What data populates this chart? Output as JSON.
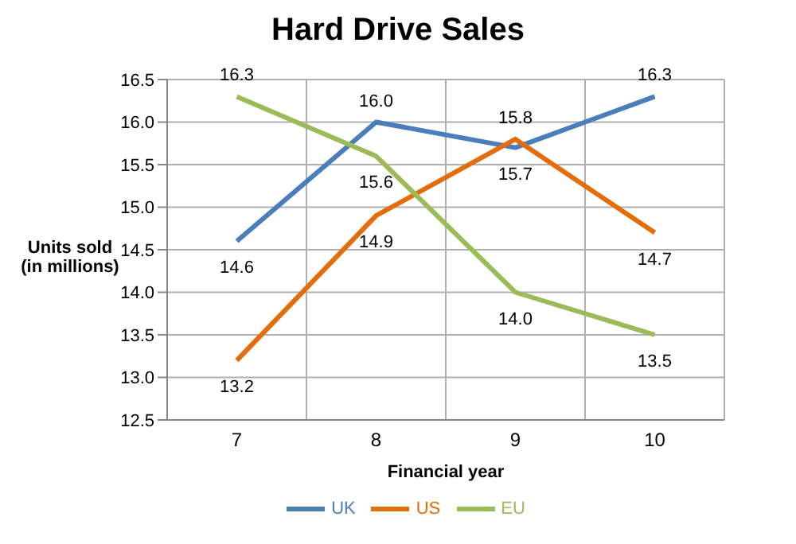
{
  "chart_data": {
    "type": "line",
    "title": "Hard Drive Sales",
    "xlabel": "Financial year",
    "ylabel": "Units sold\n(in millions)",
    "categories": [
      "7",
      "8",
      "9",
      "10"
    ],
    "series": [
      {
        "name": "UK",
        "color": "#4a7ebb",
        "values": [
          14.6,
          16.0,
          15.7,
          16.3
        ],
        "value_labels": [
          "14.6",
          "16.0",
          "15.7",
          "16.3"
        ]
      },
      {
        "name": "US",
        "color": "#e46c0a",
        "values": [
          13.2,
          14.9,
          15.8,
          14.7
        ],
        "value_labels": [
          "13.2",
          "14.9",
          "15.8",
          "14.7"
        ]
      },
      {
        "name": "EU",
        "color": "#9bbb59",
        "values": [
          16.3,
          15.6,
          14.0,
          13.5
        ],
        "value_labels": [
          "16.3",
          "15.6",
          "14.0",
          "13.5"
        ]
      }
    ],
    "ylim": [
      12.5,
      16.5
    ],
    "yticks": [
      12.5,
      {
        "value": 13,
        "label": "13.0"
      },
      13.5,
      {
        "value": 14,
        "label": "14.0"
      },
      14.5,
      {
        "value": 15,
        "label": "15.0"
      },
      15.5,
      {
        "value": 16,
        "label": "16.0"
      },
      16.5
    ],
    "grid": true,
    "legend": "bottom",
    "marker": "none",
    "line_style": "solid"
  }
}
